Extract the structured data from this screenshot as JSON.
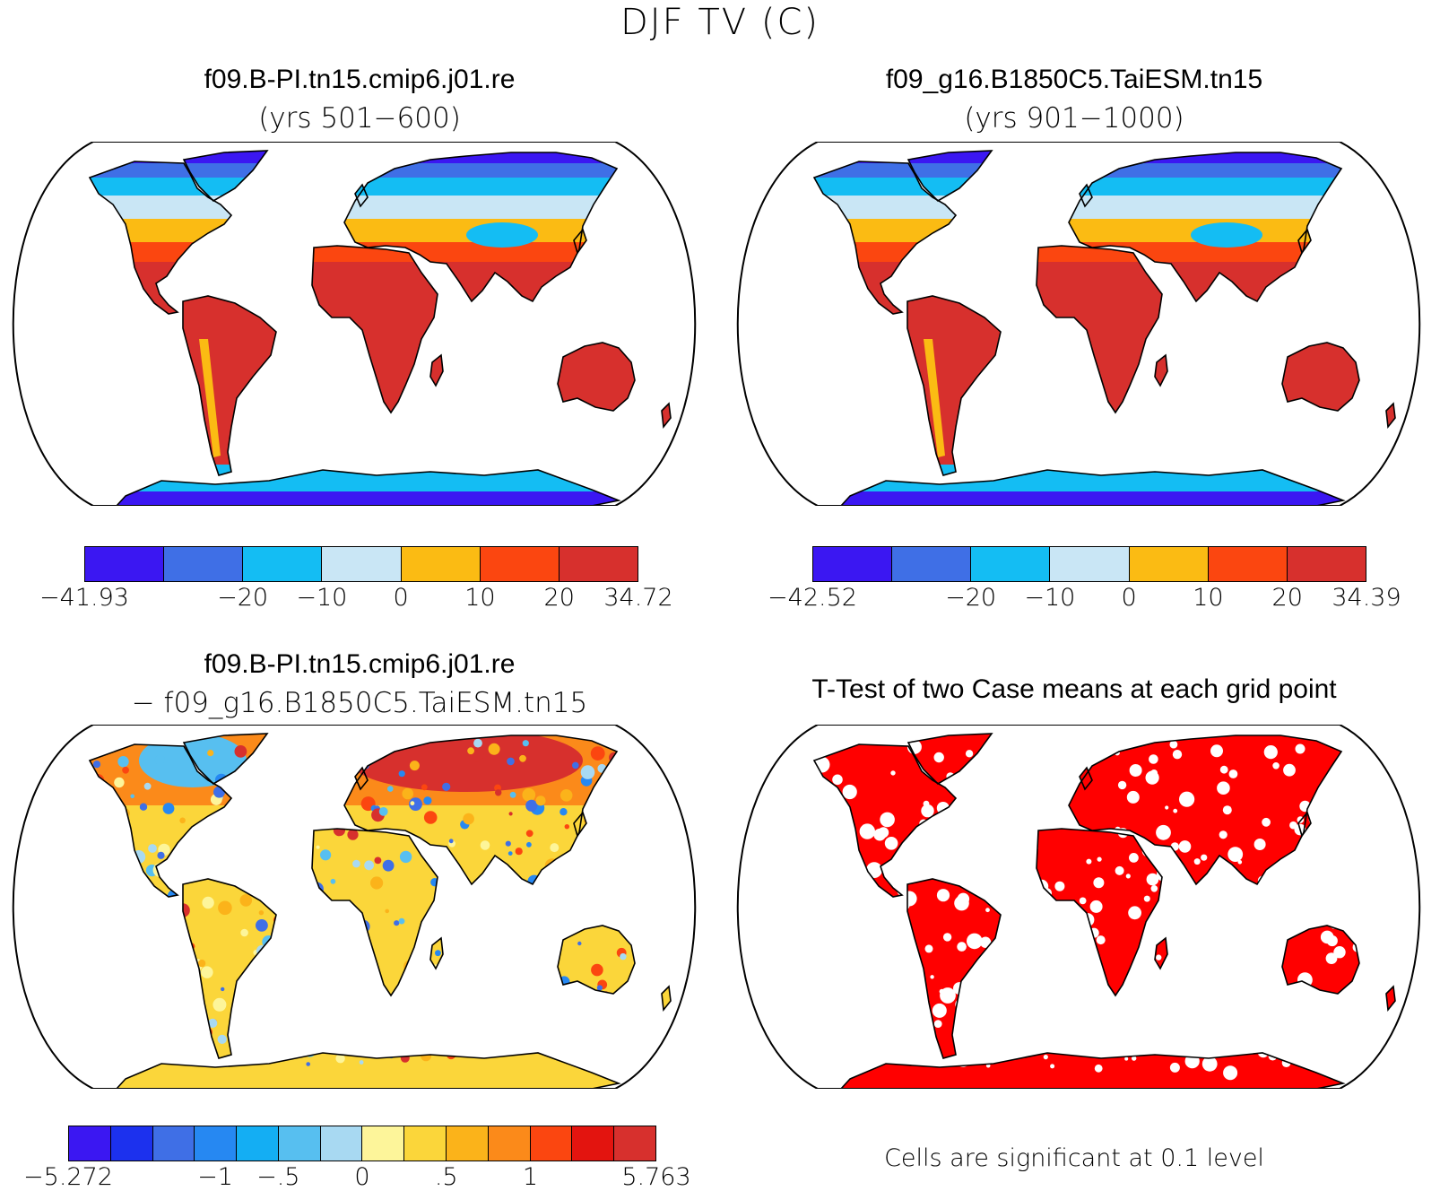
{
  "figure": {
    "title": "DJF TV (C)"
  },
  "panels": [
    {
      "title": "f09.B-PI.tn15.cmip6.j01.re",
      "subtitle": "(yrs 501−600)"
    },
    {
      "title": "f09_g16.B1850C5.TaiESM.tn15",
      "subtitle": "(yrs 901−1000)"
    },
    {
      "title": "f09.B-PI.tn15.cmip6.j01.re",
      "subtitle": "− f09_g16.B1850C5.TaiESM.tn15"
    },
    {
      "title": "T-Test of two Case means at each grid point",
      "subtitle": ""
    }
  ],
  "colorbars": [
    {
      "colors": [
        "#3b17f2",
        "#3f6fe6",
        "#14bdf3",
        "#c9e6f5",
        "#fbbb13",
        "#fb4610",
        "#d7302d"
      ],
      "labels": [
        "−41.93",
        "−20",
        "−10",
        "0",
        "10",
        "20",
        "34.72"
      ]
    },
    {
      "colors": [
        "#3b17f2",
        "#3f6fe6",
        "#14bdf3",
        "#c9e6f5",
        "#fbbb13",
        "#fb4610",
        "#d7302d"
      ],
      "labels": [
        "−42.52",
        "−20",
        "−10",
        "0",
        "10",
        "20",
        "34.39"
      ]
    },
    {
      "colors": [
        "#3b17f2",
        "#1c31ee",
        "#3f6fe6",
        "#2688f2",
        "#14aef3",
        "#57bff0",
        "#a8d9f2",
        "#fdf59a",
        "#fbd63a",
        "#fbb31a",
        "#fb8a1a",
        "#fb4610",
        "#e3140f",
        "#d7302d"
      ],
      "labels": [
        "−5.272",
        "−1",
        "−.5",
        "0",
        ".5",
        "1",
        "5.763"
      ]
    }
  ],
  "significance_note": "Cells are significant at 0.1 level",
  "colors": {
    "significant": "#ff0000",
    "coastline": "#000000",
    "background": "#ffffff"
  }
}
